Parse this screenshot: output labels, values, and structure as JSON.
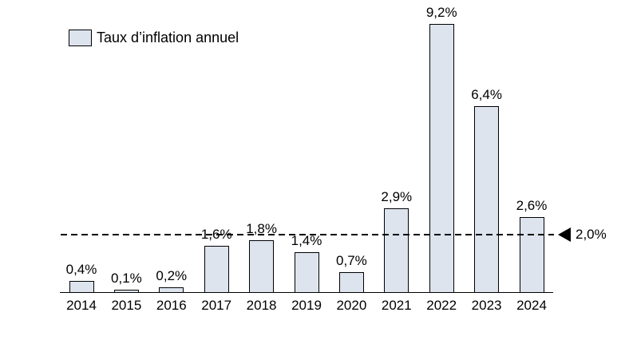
{
  "chart_data": {
    "type": "bar",
    "title": "",
    "legend": "Taux d’inflation annuel",
    "legend_position": "top-left",
    "categories": [
      "2014",
      "2015",
      "2016",
      "2017",
      "2018",
      "2019",
      "2020",
      "2021",
      "2022",
      "2023",
      "2024"
    ],
    "values": [
      0.4,
      0.1,
      0.2,
      1.6,
      1.8,
      1.4,
      0.7,
      2.9,
      9.2,
      6.4,
      2.6
    ],
    "value_labels": [
      "0,4%",
      "0,1%",
      "0,2%",
      "1,6%",
      "1,8%",
      "1,4%",
      "0,7%",
      "2,9%",
      "9,2%",
      "6,4%",
      "2,6%"
    ],
    "reference_line": {
      "value": 2.0,
      "label": "2,0%",
      "style": "dashed",
      "marker": "left-triangle"
    },
    "xlabel": "",
    "ylabel": "",
    "ylim": [
      0,
      9.2
    ],
    "grid": false,
    "y_axis_shown": false,
    "colors": {
      "bar_fill": "#dde4ee",
      "bar_border": "#000000",
      "axis": "#000000",
      "reference_line": "#000000",
      "text": "#000000",
      "background": "#ffffff"
    }
  }
}
